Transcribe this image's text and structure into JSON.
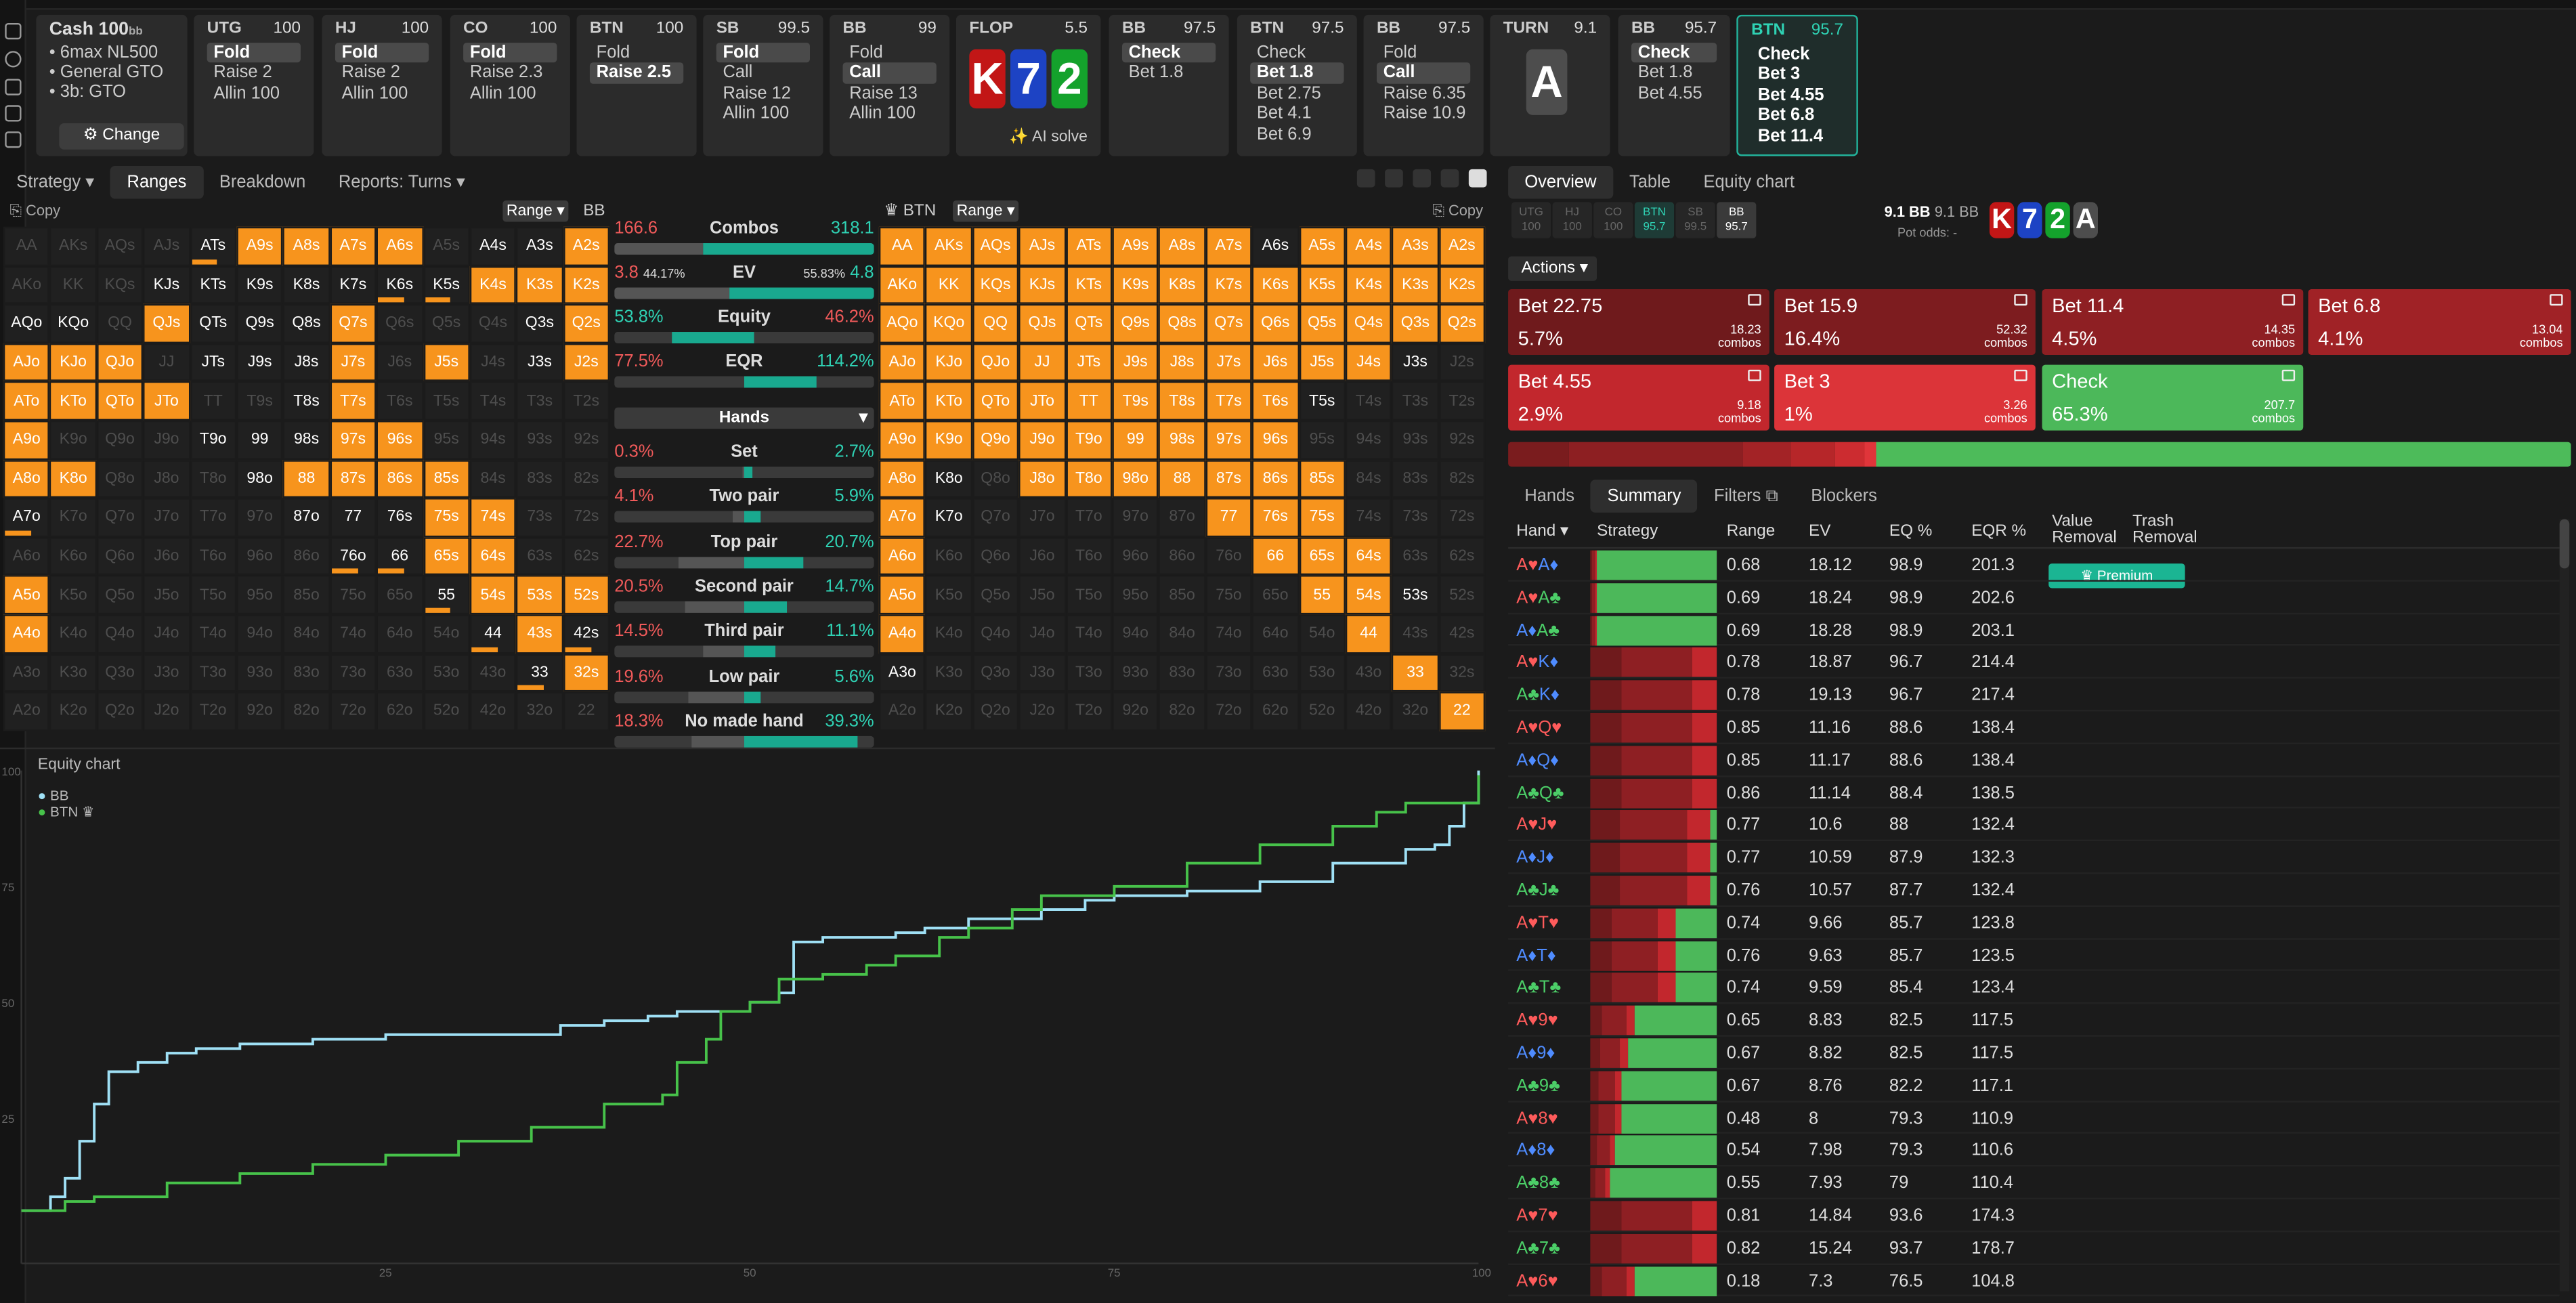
{
  "colors": {
    "orange": "#f7941d",
    "teal": "#2fd2b4",
    "red": "#f05a5a",
    "bb_line": "#9fe0f5",
    "btn_line": "#47c24a"
  },
  "cash": {
    "title": "Cash",
    "stack": "100",
    "stack_unit": "bb",
    "lines": [
      "6max NL500",
      "General GTO",
      "3b: GTO"
    ],
    "change": "Change"
  },
  "nav": [
    {
      "pos": "UTG",
      "stack": "100",
      "actions": [
        "Fold",
        "Raise 2",
        "Allin 100"
      ],
      "sel": 0
    },
    {
      "pos": "HJ",
      "stack": "100",
      "actions": [
        "Fold",
        "Raise 2",
        "Allin 100"
      ],
      "sel": 0
    },
    {
      "pos": "CO",
      "stack": "100",
      "actions": [
        "Fold",
        "Raise 2.3",
        "Allin 100"
      ],
      "sel": 0
    },
    {
      "pos": "BTN",
      "stack": "100",
      "actions": [
        "Fold",
        "Raise 2.5"
      ],
      "sel": 1
    },
    {
      "pos": "SB",
      "stack": "99.5",
      "actions": [
        "Fold",
        "Call",
        "Raise 12",
        "Allin 100"
      ],
      "sel": 0
    },
    {
      "pos": "BB",
      "stack": "99",
      "actions": [
        "Fold",
        "Call",
        "Raise 13",
        "Allin 100"
      ],
      "sel": 1
    },
    {
      "pos": "BB",
      "stack": "97.5",
      "actions": [
        "Check",
        "Bet 1.8"
      ],
      "sel": 0
    },
    {
      "pos": "BTN",
      "stack": "97.5",
      "actions": [
        "Check",
        "Bet 1.8",
        "Bet 2.75",
        "Bet 4.1",
        "Bet 6.9"
      ],
      "sel": 1
    },
    {
      "pos": "BB",
      "stack": "97.5",
      "actions": [
        "Fold",
        "Call",
        "Raise 6.35",
        "Raise 10.9"
      ],
      "sel": 1
    },
    {
      "pos": "BB",
      "stack": "95.7",
      "actions": [
        "Check",
        "Bet 1.8",
        "Bet 4.55"
      ],
      "sel": 0
    },
    {
      "pos": "BTN",
      "stack": "95.7",
      "actions": [
        "Check",
        "Bet 3",
        "Bet 4.55",
        "Bet 6.8",
        "Bet 11.4"
      ],
      "sel": -1
    }
  ],
  "flop": {
    "label": "FLOP",
    "pot": "5.5",
    "cards": [
      "K",
      "7",
      "2"
    ],
    "ai": "AI solve"
  },
  "turn": {
    "label": "TURN",
    "pot": "9.1",
    "card": "A"
  },
  "left_tabs": [
    "Strategy",
    "Ranges",
    "Breakdown",
    "Reports: Turns"
  ],
  "copy": "Copy",
  "range_btn": "Range",
  "bb_label": "BB",
  "btn_label": "BTN",
  "ranks": [
    "A",
    "K",
    "Q",
    "J",
    "T",
    "9",
    "8",
    "7",
    "6",
    "5",
    "4",
    "3",
    "2"
  ],
  "grid_left": {
    "orange": [
      "A9s",
      "A8s",
      "A7s",
      "A6s",
      "A2s",
      "Q7s",
      "K6s",
      "K5s",
      "K4s",
      "K3s",
      "K2s",
      "Q2s",
      "J2s",
      "J7s",
      "A9o",
      "A8o",
      "A7o",
      "97s",
      "96s",
      "88",
      "87s",
      "86s",
      "85s",
      "75s",
      "74s",
      "66",
      "65s",
      "64s",
      "55",
      "54s",
      "53s",
      "52s",
      "44",
      "43s",
      "42s",
      "33",
      "32s",
      "T7s",
      "J5s",
      "ATo",
      "QJs",
      "AJo",
      "KJo",
      "QJo",
      "K8o",
      "KTo",
      "QTo",
      "JTo",
      "A5o",
      "A4o",
      "ATs"
    ],
    "partial": [
      "ATs",
      "K6s",
      "K5s",
      "A7o",
      "76o",
      "66",
      "55",
      "44",
      "42s",
      "33"
    ],
    "hl": [
      "A4s",
      "A3s",
      "KJs",
      "KTs",
      "K9s",
      "K8s",
      "K7s",
      "Q9s",
      "Q8s",
      "QTs",
      "JTs",
      "J9s",
      "J8s",
      "T8s",
      "T9o",
      "99",
      "98s",
      "98o",
      "87o",
      "77",
      "76s",
      "76o",
      "Q3s",
      "AQo",
      "KQo",
      "43s",
      "32s",
      "J3s",
      "A5o",
      "A4o"
    ]
  },
  "grid_right": {
    "orange": [
      "AA",
      "AKs",
      "AQs",
      "AJs",
      "ATs",
      "A9s",
      "A8s",
      "A7s",
      "A5s",
      "A4s",
      "A3s",
      "A2s",
      "AKo",
      "KK",
      "KQs",
      "KJs",
      "KTs",
      "K9s",
      "K8s",
      "K7s",
      "K6s",
      "K5s",
      "K4s",
      "K3s",
      "K2s",
      "AQo",
      "KQo",
      "QQ",
      "QJs",
      "QTs",
      "Q9s",
      "Q8s",
      "Q7s",
      "Q6s",
      "Q5s",
      "Q4s",
      "Q3s",
      "Q2s",
      "AJo",
      "KJo",
      "QJo",
      "JJ",
      "JTs",
      "J9s",
      "J8s",
      "J7s",
      "J6s",
      "J5s",
      "J4s",
      "ATo",
      "KTo",
      "QTo",
      "JTo",
      "TT",
      "T9s",
      "T8s",
      "T7s",
      "T6s",
      "A9o",
      "K9o",
      "Q9o",
      "J9o",
      "T9o",
      "99",
      "98s",
      "97s",
      "96s",
      "A8o",
      "J8o",
      "T8o",
      "98o",
      "88",
      "87s",
      "86s",
      "85s",
      "A7o",
      "77",
      "76s",
      "75s",
      "A6o",
      "66",
      "65s",
      "64s",
      "A5o",
      "55",
      "54s",
      "A4o",
      "44",
      "33",
      "22"
    ],
    "hl": [
      "A6s",
      "T5s",
      "53s",
      "A3o",
      "K8o",
      "K7o",
      "J3s"
    ]
  },
  "stats": {
    "combos": [
      "166.6",
      "Combos",
      "318.1"
    ],
    "ev": [
      "3.8",
      "44.17%",
      "EV",
      "55.83%",
      "4.8"
    ],
    "equity": [
      "53.8%",
      "Equity",
      "46.2%"
    ],
    "eqr": [
      "77.5%",
      "EQR",
      "114.2%"
    ],
    "hands_select": "Hands",
    "cats": [
      {
        "l": "0.3%",
        "n": "Set",
        "r": "2.7%"
      },
      {
        "l": "4.1%",
        "n": "Two pair",
        "r": "5.9%"
      },
      {
        "l": "22.7%",
        "n": "Top pair",
        "r": "20.7%"
      },
      {
        "l": "20.5%",
        "n": "Second pair",
        "r": "14.7%"
      },
      {
        "l": "14.5%",
        "n": "Third pair",
        "r": "11.1%"
      },
      {
        "l": "19.6%",
        "n": "Low pair",
        "r": "5.6%"
      },
      {
        "l": "18.3%",
        "n": "No made hand",
        "r": "39.3%"
      }
    ]
  },
  "equity_chart": {
    "title": "Equity chart",
    "legend": [
      "BB",
      "BTN"
    ],
    "xticks": [
      "25",
      "50",
      "75",
      "100"
    ],
    "yticks": [
      "100",
      "75",
      "50",
      "25"
    ]
  },
  "chart_data": {
    "type": "line",
    "title": "Equity chart",
    "xlim": [
      0,
      100
    ],
    "ylim": [
      0,
      100
    ],
    "series": [
      {
        "name": "BB",
        "x": [
          0,
          2,
          3,
          4,
          5,
          6,
          8,
          10,
          12,
          15,
          20,
          25,
          30,
          35,
          37,
          40,
          43,
          45,
          50,
          52,
          53,
          55,
          58,
          60,
          62,
          65,
          70,
          73,
          75,
          80,
          85,
          90,
          95,
          97,
          98,
          99,
          100
        ],
        "y": [
          5,
          8,
          12,
          20,
          28,
          35,
          37,
          39,
          40,
          41,
          42,
          43,
          43,
          43,
          45,
          46,
          47,
          48,
          50,
          52,
          63,
          64,
          64,
          65,
          66,
          68,
          70,
          72,
          73,
          74,
          76,
          80,
          83,
          84,
          88,
          93,
          100
        ]
      },
      {
        "name": "BTN",
        "x": [
          0,
          3,
          5,
          10,
          15,
          20,
          25,
          30,
          35,
          40,
          44,
          45,
          47,
          48,
          50,
          52,
          55,
          58,
          60,
          63,
          65,
          68,
          70,
          75,
          80,
          85,
          90,
          93,
          95,
          100
        ],
        "y": [
          5,
          7,
          8,
          11,
          13,
          15,
          17,
          20,
          23,
          28,
          30,
          37,
          42,
          48,
          50,
          55,
          56,
          58,
          60,
          64,
          66,
          70,
          73,
          75,
          80,
          84,
          88,
          91,
          93,
          99
        ]
      }
    ]
  },
  "right_tabs": [
    "Overview",
    "Table",
    "Equity chart"
  ],
  "right_players": [
    {
      "p": "UTG",
      "s": "100"
    },
    {
      "p": "HJ",
      "s": "100"
    },
    {
      "p": "CO",
      "s": "100"
    },
    {
      "p": "BTN",
      "s": "95.7"
    },
    {
      "p": "SB",
      "s": "99.5"
    },
    {
      "p": "BB",
      "s": "95.7"
    }
  ],
  "pot": {
    "a": "9.1 BB",
    "b": "9.1 BB",
    "odds": "Pot odds: -"
  },
  "board": [
    "K",
    "7",
    "2",
    "A"
  ],
  "actions_btn": "Actions",
  "action_cards": [
    {
      "n": "Bet 22.75",
      "p": "5.7%",
      "c": "18.23"
    },
    {
      "n": "Bet 15.9",
      "p": "16.4%",
      "c": "52.32"
    },
    {
      "n": "Bet 11.4",
      "p": "4.5%",
      "c": "14.35"
    },
    {
      "n": "Bet 6.8",
      "p": "4.1%",
      "c": "13.04"
    },
    {
      "n": "Bet 4.55",
      "p": "2.9%",
      "c": "9.18"
    },
    {
      "n": "Bet 3",
      "p": "1%",
      "c": "3.26"
    },
    {
      "n": "Check",
      "p": "65.3%",
      "c": "207.7"
    }
  ],
  "combos_word": "combos",
  "bottom_tabs": [
    "Hands",
    "Summary",
    "Filters",
    "Blockers"
  ],
  "table_head": [
    "Hand",
    "Strategy",
    "Range",
    "EV",
    "EQ %",
    "EQR %",
    "Value Removal",
    "Trash Removal"
  ],
  "premium": "Premium",
  "rows": [
    {
      "h": "A♥A♦",
      "r": "0.68",
      "ev": "18.12",
      "eq": "98.9",
      "eqr": "201.3",
      "ck": 0.95
    },
    {
      "h": "A♥A♣",
      "r": "0.69",
      "ev": "18.24",
      "eq": "98.9",
      "eqr": "202.6",
      "ck": 0.95
    },
    {
      "h": "A♦A♣",
      "r": "0.69",
      "ev": "18.28",
      "eq": "98.9",
      "eqr": "203.1",
      "ck": 0.95
    },
    {
      "h": "A♥K♦",
      "r": "0.78",
      "ev": "18.87",
      "eq": "96.7",
      "eqr": "214.4",
      "ck": 0.0
    },
    {
      "h": "A♣K♦",
      "r": "0.78",
      "ev": "19.13",
      "eq": "96.7",
      "eqr": "217.4",
      "ck": 0.0
    },
    {
      "h": "A♥Q♥",
      "r": "0.85",
      "ev": "11.16",
      "eq": "88.6",
      "eqr": "138.4",
      "ck": 0.0
    },
    {
      "h": "A♦Q♦",
      "r": "0.85",
      "ev": "11.17",
      "eq": "88.6",
      "eqr": "138.4",
      "ck": 0.0
    },
    {
      "h": "A♣Q♣",
      "r": "0.86",
      "ev": "11.14",
      "eq": "88.4",
      "eqr": "138.5",
      "ck": 0.0
    },
    {
      "h": "A♥J♥",
      "r": "0.77",
      "ev": "10.6",
      "eq": "88",
      "eqr": "132.4",
      "ck": 0.05
    },
    {
      "h": "A♦J♦",
      "r": "0.77",
      "ev": "10.59",
      "eq": "87.9",
      "eqr": "132.3",
      "ck": 0.05
    },
    {
      "h": "A♣J♣",
      "r": "0.76",
      "ev": "10.57",
      "eq": "87.7",
      "eqr": "132.4",
      "ck": 0.05
    },
    {
      "h": "A♥T♥",
      "r": "0.74",
      "ev": "9.66",
      "eq": "85.7",
      "eqr": "123.8",
      "ck": 0.33
    },
    {
      "h": "A♦T♦",
      "r": "0.76",
      "ev": "9.63",
      "eq": "85.7",
      "eqr": "123.5",
      "ck": 0.33
    },
    {
      "h": "A♣T♣",
      "r": "0.74",
      "ev": "9.59",
      "eq": "85.4",
      "eqr": "123.4",
      "ck": 0.33
    },
    {
      "h": "A♥9♥",
      "r": "0.65",
      "ev": "8.83",
      "eq": "82.5",
      "eqr": "117.5",
      "ck": 0.65
    },
    {
      "h": "A♦9♦",
      "r": "0.67",
      "ev": "8.82",
      "eq": "82.5",
      "eqr": "117.5",
      "ck": 0.7
    },
    {
      "h": "A♣9♣",
      "r": "0.67",
      "ev": "8.76",
      "eq": "82.2",
      "eqr": "117.1",
      "ck": 0.75
    },
    {
      "h": "A♥8♥",
      "r": "0.48",
      "ev": "8",
      "eq": "79.3",
      "eqr": "110.9",
      "ck": 0.75
    },
    {
      "h": "A♦8♦",
      "r": "0.54",
      "ev": "7.98",
      "eq": "79.3",
      "eqr": "110.6",
      "ck": 0.8
    },
    {
      "h": "A♣8♣",
      "r": "0.55",
      "ev": "7.93",
      "eq": "79",
      "eqr": "110.4",
      "ck": 0.85
    },
    {
      "h": "A♥7♥",
      "r": "0.81",
      "ev": "14.84",
      "eq": "93.6",
      "eqr": "174.3",
      "ck": 0.0
    },
    {
      "h": "A♣7♣",
      "r": "0.82",
      "ev": "15.24",
      "eq": "93.7",
      "eqr": "178.7",
      "ck": 0.0
    },
    {
      "h": "A♥6♥",
      "r": "0.18",
      "ev": "7.3",
      "eq": "76.5",
      "eqr": "104.8",
      "ck": 0.65
    }
  ]
}
